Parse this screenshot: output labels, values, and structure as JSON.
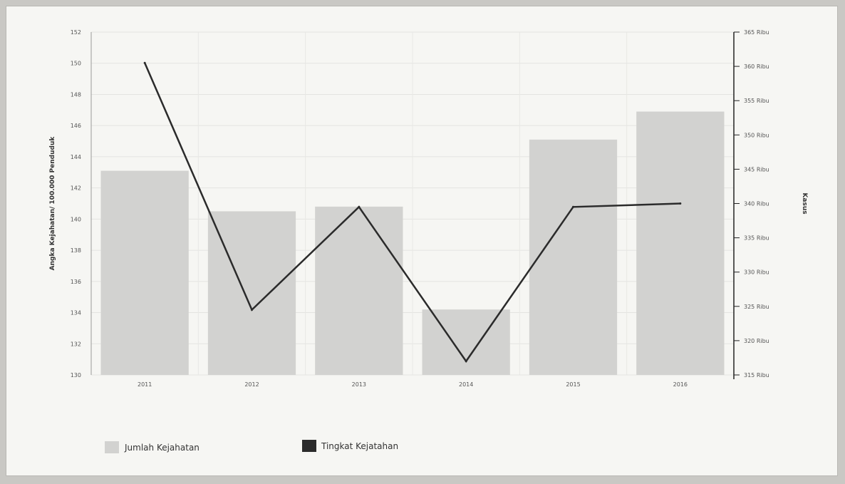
{
  "chart_data": {
    "type": "bar",
    "categories": [
      "2011",
      "2012",
      "2013",
      "2014",
      "2015",
      "2016"
    ],
    "series": [
      {
        "name": "Jumlah Kejahatan",
        "type": "bar",
        "axis": "left",
        "color": "#d2d2d0",
        "values": [
          143.1,
          140.5,
          140.8,
          134.2,
          145.1,
          146.9
        ]
      },
      {
        "name": "Tingkat Kejatahan",
        "type": "line",
        "axis": "right",
        "color": "#2b2b2b",
        "values": [
          360.5,
          324.5,
          339.5,
          317.0,
          339.5,
          340.0
        ]
      }
    ],
    "ylabel": "Angka Kejahatan/ 100.000 Penduduk",
    "ylim": [
      130,
      152
    ],
    "yticks": [
      "130",
      "132",
      "134",
      "136",
      "138",
      "140",
      "142",
      "144",
      "146",
      "148",
      "150",
      "152"
    ],
    "y2label": "Kasus",
    "y2lim": [
      315,
      365
    ],
    "y2ticks": [
      "315 Ribu",
      "320 Ribu",
      "325 Ribu",
      "330 Ribu",
      "335 Ribu",
      "340 Ribu",
      "345 Ribu",
      "350 Ribu",
      "355 Ribu",
      "360 Ribu",
      "365 Ribu"
    ],
    "grid": true,
    "legend": "bottom-left"
  }
}
